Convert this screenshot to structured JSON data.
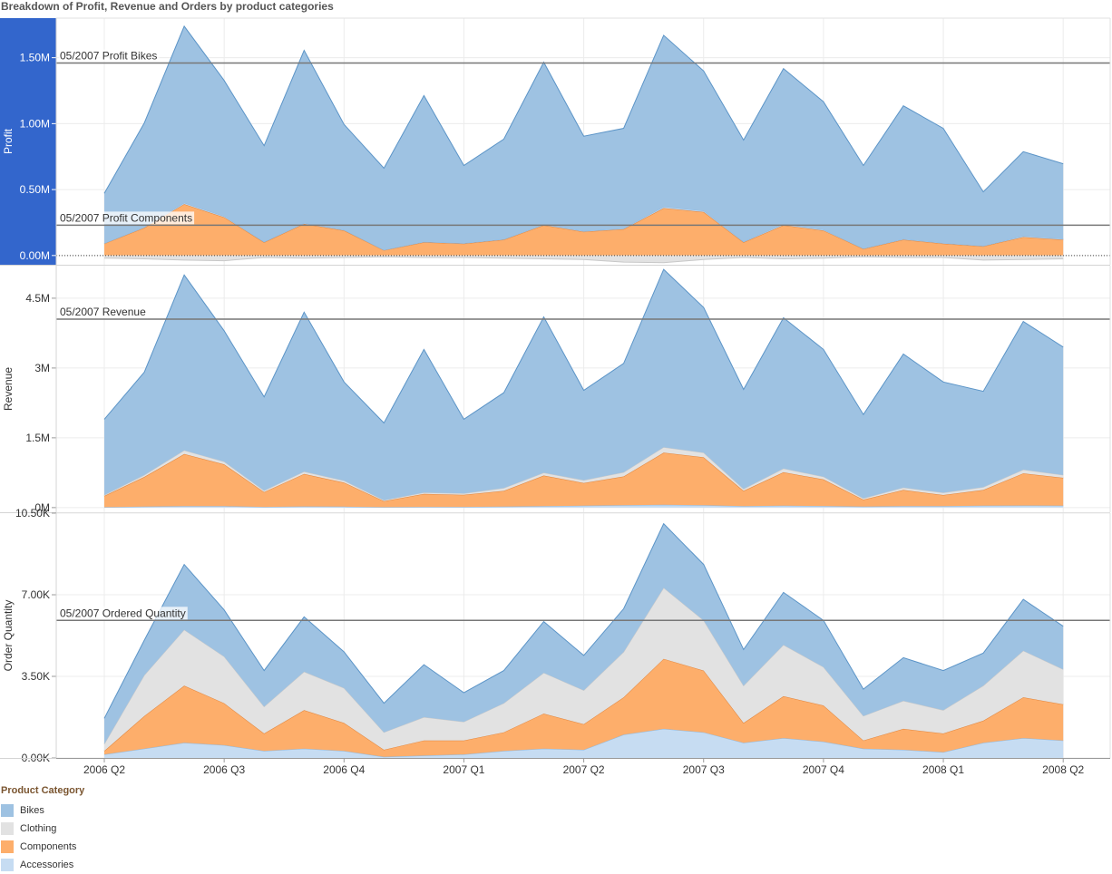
{
  "title": "Breakdown of Profit, Revenue and Orders by product categories",
  "colors": {
    "Bikes": "#9ec2e2",
    "Clothing": "#e2e2e2",
    "Components": "#fdae6b",
    "Accessories": "#c6dcf2",
    "bikes_line": "#5b94c7",
    "components_line": "#e0843b",
    "accessories_line": "#8fb8de",
    "reference_line": "#777777",
    "profit_axis_bg": "#3366cc"
  },
  "legend": {
    "title": "Product Category",
    "items": [
      "Bikes",
      "Clothing",
      "Components",
      "Accessories"
    ]
  },
  "chart_data": {
    "type": "area",
    "x_tick_labels": [
      "2006 Q2",
      "2006 Q3",
      "2006 Q4",
      "2007 Q1",
      "2007 Q2",
      "2007 Q3",
      "2007 Q4",
      "2008 Q1",
      "2008 Q2"
    ],
    "x": [
      "2006-05",
      "2006-06",
      "2006-07",
      "2006-08",
      "2006-09",
      "2006-10",
      "2006-11",
      "2006-12",
      "2007-01",
      "2007-02",
      "2007-03",
      "2007-04",
      "2007-05",
      "2007-06",
      "2007-07",
      "2007-08",
      "2007-09",
      "2007-10",
      "2007-11",
      "2007-12",
      "2008-01",
      "2008-02",
      "2008-03",
      "2008-04",
      "2008-05"
    ],
    "panels": [
      {
        "ylabel": "Profit",
        "ylim": [
          -70000,
          1800000
        ],
        "ticks": [
          0,
          500000,
          1000000,
          1500000
        ],
        "tick_labels": [
          "0.00M",
          "0.50M",
          "1.00M",
          "1.50M"
        ],
        "zero_line": true,
        "series": [
          {
            "name": "Components",
            "values": [
              90000,
              210000,
              390000,
              290000,
              100000,
              240000,
              190000,
              40000,
              100000,
              90000,
              120000,
              230000,
              180000,
              200000,
              360000,
              330000,
              100000,
              230000,
              190000,
              50000,
              120000,
              90000,
              70000,
              140000,
              120000
            ]
          },
          {
            "name": "Accessories",
            "values": [
              2000,
              5000,
              9000,
              8000,
              3000,
              6000,
              4000,
              2000,
              3000,
              3000,
              3000,
              6000,
              5000,
              5000,
              10000,
              9000,
              5000,
              8000,
              6000,
              3000,
              5000,
              4000,
              3000,
              7000,
              6000
            ]
          },
          {
            "name": "Bikes",
            "values": [
              380000,
              790000,
              1340000,
              1030000,
              730000,
              1310000,
              800000,
              620000,
              1110000,
              590000,
              760000,
              1230000,
              720000,
              760000,
              1300000,
              1060000,
              770000,
              1180000,
              970000,
              630000,
              1010000,
              870000,
              410000,
              640000,
              570000
            ]
          },
          {
            "name": "Clothing",
            "values": [
              -20000,
              -25000,
              -35000,
              -40000,
              -15000,
              -20000,
              -15000,
              -10000,
              -15000,
              -15000,
              -20000,
              -25000,
              -30000,
              -50000,
              -55000,
              -30000,
              -15000,
              -25000,
              -20000,
              -10000,
              -15000,
              -15000,
              -35000,
              -30000,
              -25000
            ]
          }
        ],
        "reference": {
          "label": "05/2007 Profit Bikes",
          "value": 1460000
        },
        "reference2": {
          "label": "05/2007 Profit Components",
          "value": 230000
        }
      },
      {
        "ylabel": "Revenue",
        "ylim": [
          -100000,
          5200000
        ],
        "ticks": [
          0,
          1500000,
          3000000,
          4500000
        ],
        "tick_labels": [
          "0M",
          "1.5M",
          "3M",
          "4.5M"
        ],
        "series": [
          {
            "name": "Accessories",
            "values": [
              10000,
              20000,
              30000,
              30000,
              15000,
              25000,
              20000,
              10000,
              15000,
              15000,
              20000,
              30000,
              40000,
              50000,
              60000,
              50000,
              30000,
              40000,
              35000,
              20000,
              30000,
              30000,
              40000,
              45000,
              40000
            ]
          },
          {
            "name": "Components",
            "values": [
              240000,
              640000,
              1120000,
              900000,
              320000,
              700000,
              520000,
              130000,
              280000,
              260000,
              340000,
              660000,
              490000,
              620000,
              1120000,
              1030000,
              330000,
              720000,
              570000,
              150000,
              350000,
              240000,
              340000,
              690000,
              600000
            ]
          },
          {
            "name": "Clothing",
            "values": [
              20000,
              40000,
              80000,
              60000,
              30000,
              50000,
              40000,
              20000,
              30000,
              30000,
              60000,
              60000,
              60000,
              90000,
              120000,
              100000,
              40000,
              80000,
              60000,
              30000,
              50000,
              50000,
              60000,
              80000,
              60000
            ]
          },
          {
            "name": "Bikes",
            "values": [
              1630000,
              2210000,
              3770000,
              2810000,
              2015000,
              3425000,
              2120000,
              1660000,
              3075000,
              1595000,
              2050000,
              3350000,
              1930000,
              2340000,
              3820000,
              3120000,
              2140000,
              3240000,
              2735000,
              1800000,
              2870000,
              2380000,
              2060000,
              3185000,
              2750000
            ]
          }
        ],
        "reference": {
          "label": "05/2007 Revenue",
          "value": 4050000
        }
      },
      {
        "ylabel": "Order Quantity",
        "ylim": [
          0,
          10500
        ],
        "ticks": [
          0,
          3500,
          7000,
          10500
        ],
        "tick_labels": [
          "0.00K",
          "3.50K",
          "7.00K",
          "10.50K"
        ],
        "series": [
          {
            "name": "Accessories",
            "values": [
              150,
              400,
              650,
              550,
              300,
              400,
              300,
              50,
              100,
              150,
              300,
              400,
              350,
              1000,
              1250,
              1100,
              650,
              850,
              700,
              400,
              350,
              250,
              650,
              850,
              750
            ]
          },
          {
            "name": "Components",
            "values": [
              150,
              1400,
              2450,
              1800,
              750,
              1650,
              1200,
              300,
              650,
              600,
              800,
              1500,
              1100,
              1600,
              3000,
              2650,
              850,
              1800,
              1550,
              350,
              900,
              800,
              950,
              1750,
              1550
            ]
          },
          {
            "name": "Clothing",
            "values": [
              300,
              1750,
              2400,
              2000,
              1150,
              1650,
              1500,
              750,
              1000,
              800,
              1250,
              1750,
              1450,
              1950,
              3050,
              2150,
              1600,
              2200,
              1650,
              1050,
              1200,
              1000,
              1500,
              2000,
              1500
            ]
          },
          {
            "name": "Bikes",
            "values": [
              1100,
              1500,
              2800,
              2000,
              1550,
              2350,
              1550,
              1250,
              2250,
              1250,
              1400,
              2200,
              1500,
              1850,
              2750,
              2400,
              1550,
              2250,
              2000,
              1150,
              1850,
              1700,
              1400,
              2200,
              1850
            ]
          }
        ],
        "reference": {
          "label": "05/2007 Ordered Quantity",
          "value": 5900
        }
      }
    ]
  }
}
